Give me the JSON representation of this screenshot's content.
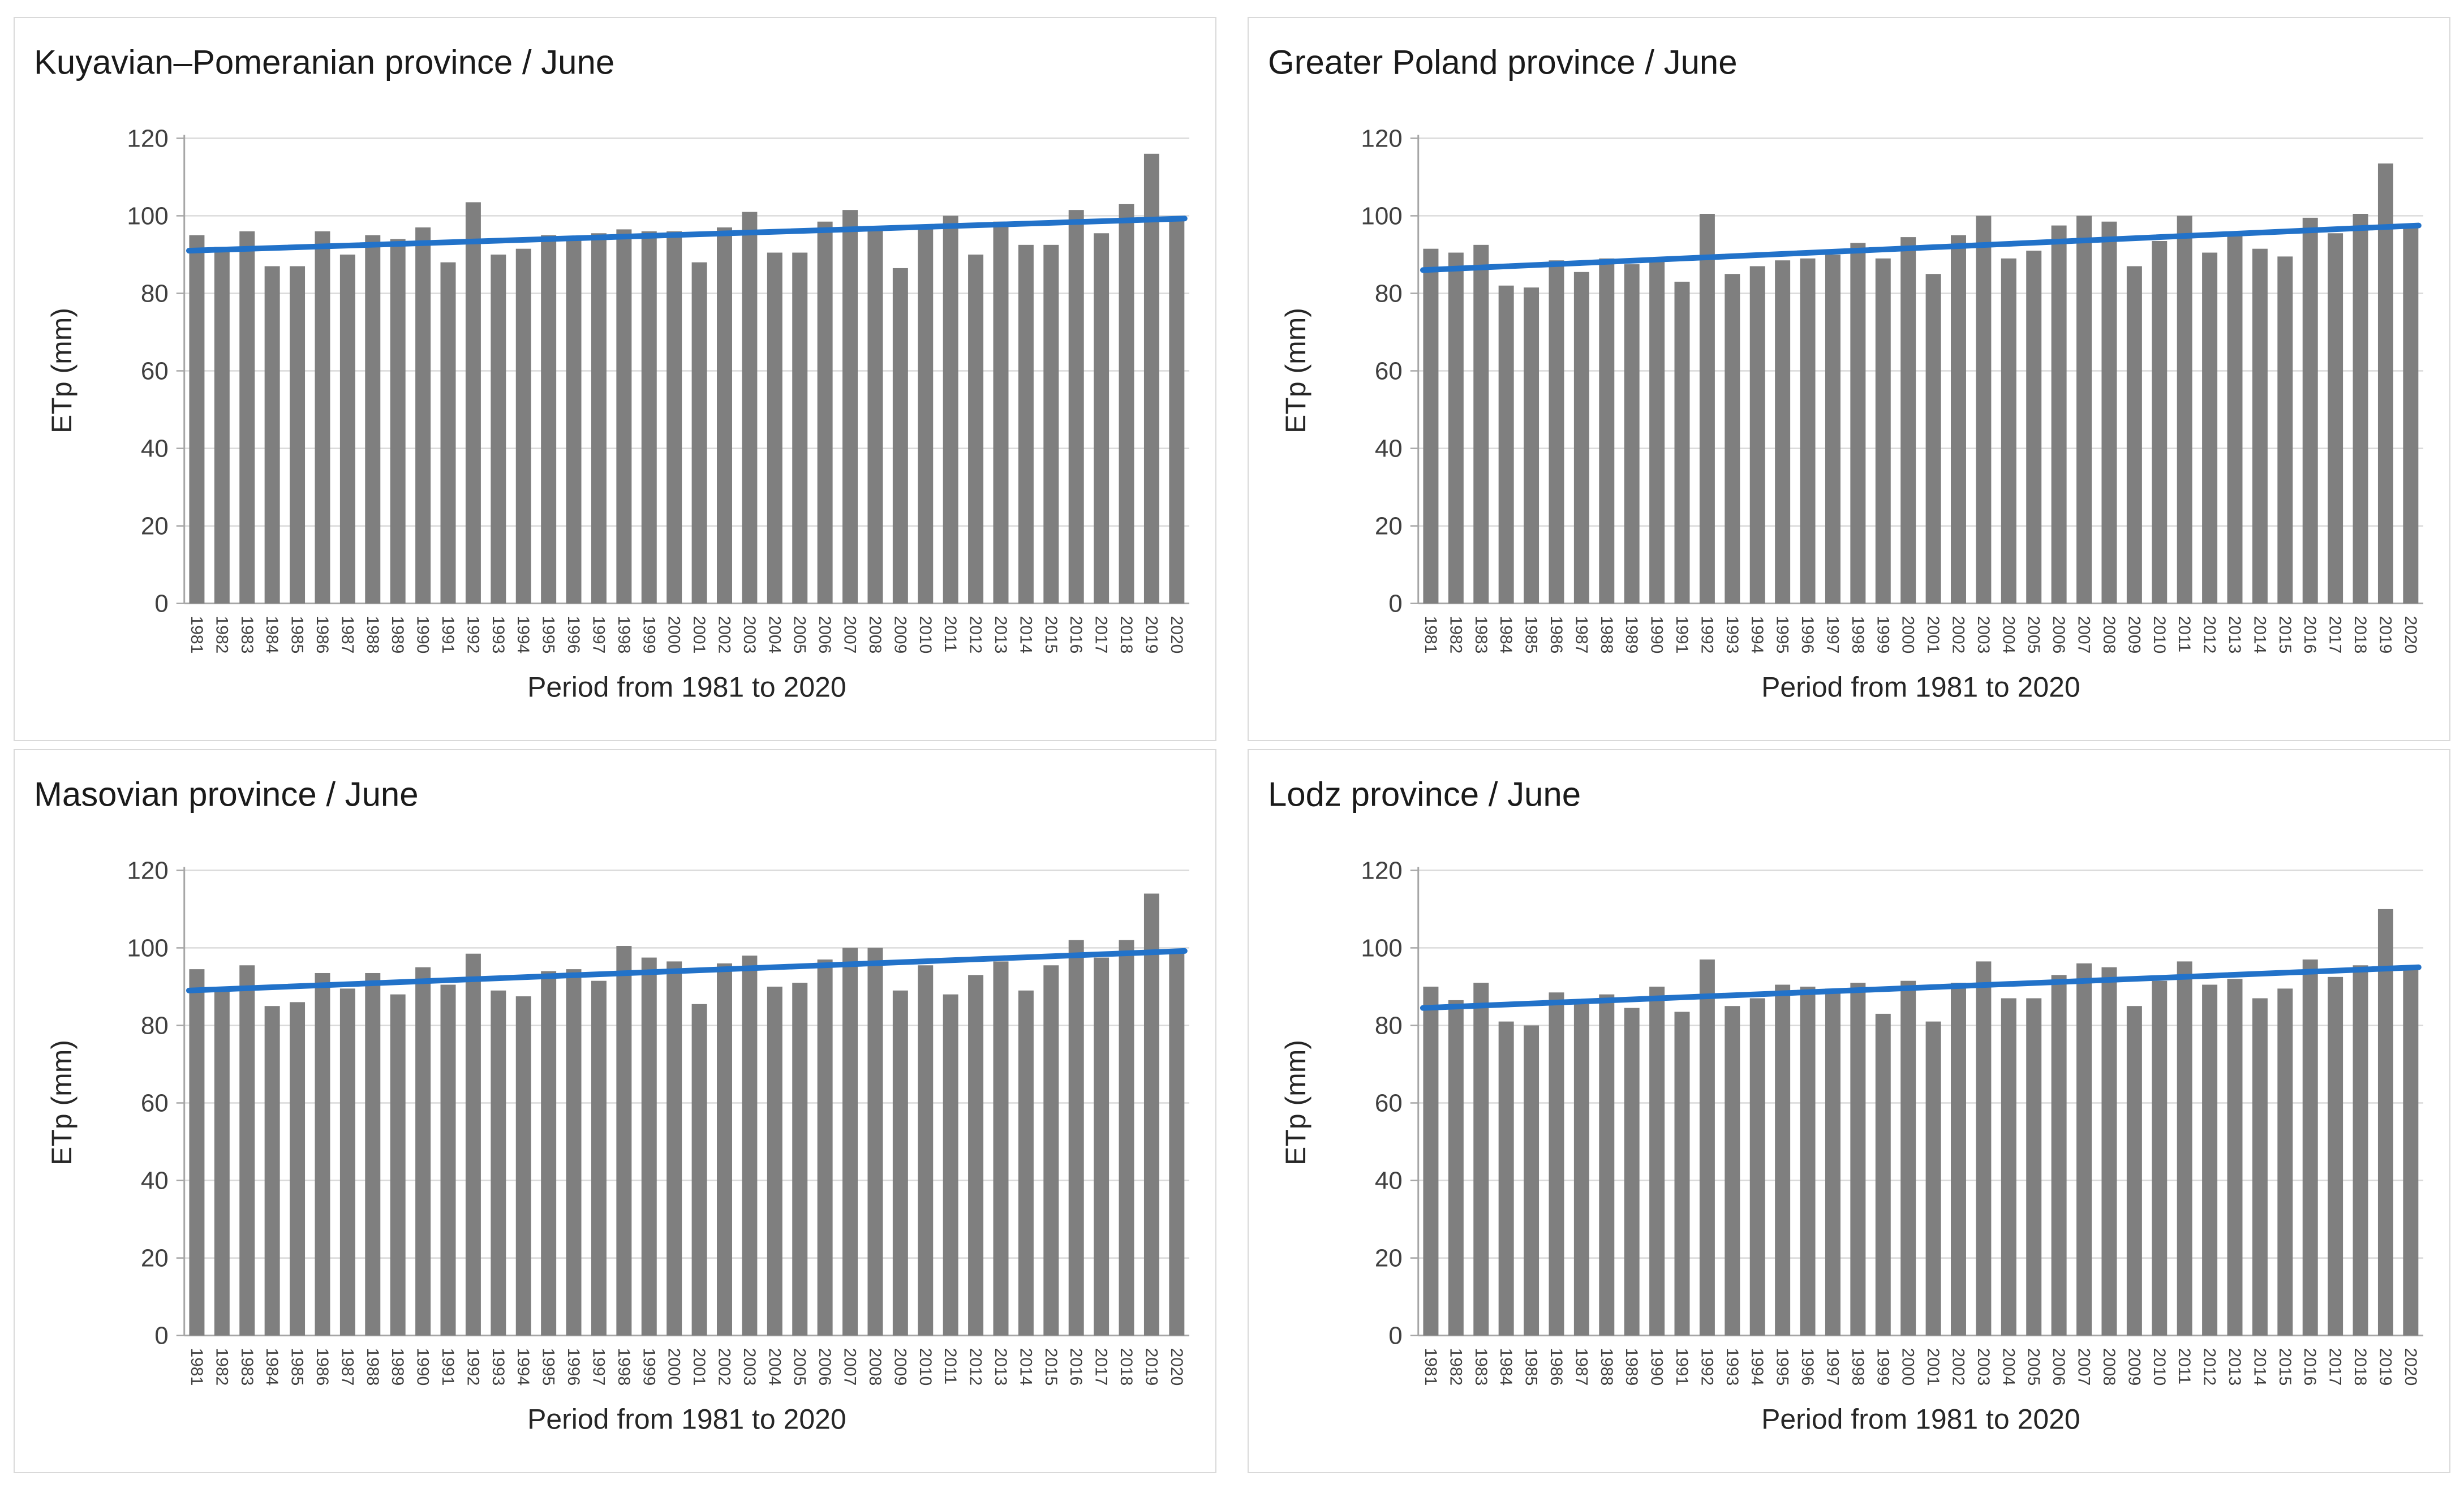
{
  "figure": {
    "background": "#ffffff",
    "layout": "2x2-grid"
  },
  "shared": {
    "ylabel": "ETp (mm)",
    "xlabel": "Period from 1981 to 2020",
    "yticks": [
      0,
      20,
      40,
      60,
      80,
      100,
      120
    ],
    "ylim": [
      0,
      120
    ],
    "colors": {
      "bar": "#7f7f7f",
      "trend": "#2272c9",
      "gridline": "#d9d9d9",
      "axis": "#a6a6a6",
      "tick_text": "#404040",
      "title_text": "#1a1a1a"
    }
  },
  "chart_data": [
    {
      "type": "bar",
      "title": "Kuyavian–Pomeranian province / June",
      "xlabel": "Period from 1981 to 2020",
      "ylabel": "ETp (mm)",
      "ylim": [
        0,
        120
      ],
      "grid": true,
      "legend": false,
      "categories": [
        "1981",
        "1982",
        "1983",
        "1984",
        "1985",
        "1986",
        "1987",
        "1988",
        "1989",
        "1990",
        "1991",
        "1992",
        "1993",
        "1994",
        "1995",
        "1996",
        "1997",
        "1998",
        "1999",
        "2000",
        "2001",
        "2002",
        "2003",
        "2004",
        "2005",
        "2006",
        "2007",
        "2008",
        "2009",
        "2010",
        "2011",
        "2012",
        "2013",
        "2014",
        "2015",
        "2016",
        "2017",
        "2018",
        "2019",
        "2020"
      ],
      "values": [
        95,
        92,
        96,
        87,
        87,
        96,
        90,
        95,
        94,
        97,
        88,
        103.5,
        90,
        91.5,
        95,
        94.5,
        95.5,
        96.5,
        96,
        96,
        88,
        97,
        101,
        90.5,
        90.5,
        98.5,
        101.5,
        97,
        86.5,
        96.5,
        100,
        90,
        98.5,
        92.5,
        92.5,
        101.5,
        95.5,
        103,
        116,
        99
      ],
      "trendline": {
        "start_value": 91,
        "end_value": 99.3,
        "color": "#2272c9"
      }
    },
    {
      "type": "bar",
      "title": "Greater Poland province / June",
      "xlabel": "Period from 1981 to 2020",
      "ylabel": "ETp (mm)",
      "ylim": [
        0,
        120
      ],
      "grid": true,
      "legend": false,
      "categories": [
        "1981",
        "1982",
        "1983",
        "1984",
        "1985",
        "1986",
        "1987",
        "1988",
        "1989",
        "1990",
        "1991",
        "1992",
        "1993",
        "1994",
        "1995",
        "1996",
        "1997",
        "1998",
        "1999",
        "2000",
        "2001",
        "2002",
        "2003",
        "2004",
        "2005",
        "2006",
        "2007",
        "2008",
        "2009",
        "2010",
        "2011",
        "2012",
        "2013",
        "2014",
        "2015",
        "2016",
        "2017",
        "2018",
        "2019",
        "2020"
      ],
      "values": [
        91.5,
        90.5,
        92.5,
        82,
        81.5,
        88.5,
        85.5,
        89,
        87.5,
        88.5,
        83,
        100.5,
        85,
        87,
        88.5,
        89,
        90,
        93,
        89,
        94.5,
        85,
        95,
        100,
        89,
        91,
        97.5,
        100,
        98.5,
        87,
        93.5,
        100,
        90.5,
        95.5,
        91.5,
        89.5,
        99.5,
        95.5,
        100.5,
        113.5,
        97
      ],
      "trendline": {
        "start_value": 86,
        "end_value": 97.5,
        "color": "#2272c9"
      }
    },
    {
      "type": "bar",
      "title": "Masovian province / June",
      "xlabel": "Period from 1981 to 2020",
      "ylabel": "ETp (mm)",
      "ylim": [
        0,
        120
      ],
      "grid": true,
      "legend": false,
      "categories": [
        "1981",
        "1982",
        "1983",
        "1984",
        "1985",
        "1986",
        "1987",
        "1988",
        "1989",
        "1990",
        "1991",
        "1992",
        "1993",
        "1994",
        "1995",
        "1996",
        "1997",
        "1998",
        "1999",
        "2000",
        "2001",
        "2002",
        "2003",
        "2004",
        "2005",
        "2006",
        "2007",
        "2008",
        "2009",
        "2010",
        "2011",
        "2012",
        "2013",
        "2014",
        "2015",
        "2016",
        "2017",
        "2018",
        "2019",
        "2020"
      ],
      "values": [
        94.5,
        89,
        95.5,
        85,
        86,
        93.5,
        89.5,
        93.5,
        88,
        95,
        90.5,
        98.5,
        89,
        87.5,
        94,
        94.5,
        91.5,
        100.5,
        97.5,
        96.5,
        85.5,
        96,
        98,
        90,
        91,
        97,
        100,
        100,
        89,
        95.5,
        88,
        93,
        96.5,
        89,
        95.5,
        102,
        97.5,
        102,
        114,
        99.5
      ],
      "trendline": {
        "start_value": 89,
        "end_value": 99.2,
        "color": "#2272c9"
      }
    },
    {
      "type": "bar",
      "title": "Lodz province / June",
      "xlabel": "Period from 1981 to 2020",
      "ylabel": "ETp (mm)",
      "ylim": [
        0,
        120
      ],
      "grid": true,
      "legend": false,
      "categories": [
        "1981",
        "1982",
        "1983",
        "1984",
        "1985",
        "1986",
        "1987",
        "1988",
        "1989",
        "1990",
        "1991",
        "1992",
        "1993",
        "1994",
        "1995",
        "1996",
        "1997",
        "1998",
        "1999",
        "2000",
        "2001",
        "2002",
        "2003",
        "2004",
        "2005",
        "2006",
        "2007",
        "2008",
        "2009",
        "2010",
        "2011",
        "2012",
        "2013",
        "2014",
        "2015",
        "2016",
        "2017",
        "2018",
        "2019",
        "2020"
      ],
      "values": [
        90,
        86.5,
        91,
        81,
        80,
        88.5,
        85.5,
        88,
        84.5,
        90,
        83.5,
        97,
        85,
        87,
        90.5,
        90,
        89.5,
        91,
        83,
        91.5,
        81,
        91,
        96.5,
        87,
        87,
        93,
        96,
        95,
        85,
        91.5,
        96.5,
        90.5,
        92,
        87,
        89.5,
        97,
        92.5,
        95.5,
        110,
        95.5
      ],
      "trendline": {
        "start_value": 84.5,
        "end_value": 95,
        "color": "#2272c9"
      }
    }
  ]
}
